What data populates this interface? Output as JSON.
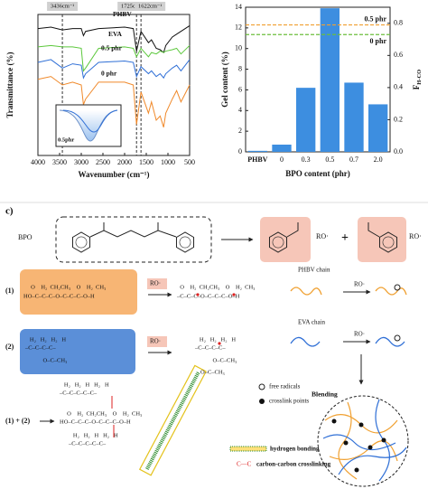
{
  "chart_data": [
    {
      "type": "line",
      "xlabel": "Wavenumber (cm⁻¹)",
      "ylabel": "Transmittance (%)",
      "x": [
        4000,
        3700,
        3436,
        3200,
        3000,
        2950,
        2900,
        2600,
        2000,
        1800,
        1725,
        1622,
        1450,
        1380,
        1270,
        1180,
        1100,
        1050,
        900,
        800,
        700,
        500
      ],
      "xlim": [
        4000,
        500
      ],
      "xticks": [
        4000,
        3500,
        3000,
        2500,
        2000,
        1500,
        1000,
        500
      ],
      "ylim": [
        0,
        100
      ],
      "series": [
        {
          "name": "PHBV",
          "color": "#111111",
          "values": [
            90,
            91,
            89,
            90,
            90,
            85,
            88,
            90,
            91,
            90,
            74,
            88,
            80,
            82,
            76,
            75,
            73,
            78,
            84,
            86,
            88,
            92
          ]
        },
        {
          "name": "EVA",
          "color": "#5cc83c",
          "values": [
            77,
            78,
            77,
            77,
            76,
            60,
            62,
            76,
            77,
            76,
            70,
            76,
            70,
            73,
            72,
            74,
            73,
            74,
            75,
            76,
            72,
            78
          ]
        },
        {
          "name": "0.5 phr",
          "color": "#2f6fd6",
          "values": [
            66,
            68,
            62,
            65,
            64,
            55,
            58,
            66,
            67,
            66,
            56,
            63,
            58,
            60,
            56,
            58,
            55,
            58,
            62,
            64,
            60,
            68
          ]
        },
        {
          "name": "0 phr",
          "color": "#f0892a",
          "values": [
            54,
            56,
            50,
            52,
            50,
            36,
            40,
            52,
            52,
            50,
            22,
            45,
            30,
            38,
            25,
            28,
            20,
            30,
            40,
            46,
            38,
            50
          ]
        }
      ],
      "markers": [
        {
          "value": 3436,
          "label": "3436cm⁻¹"
        },
        {
          "value": 1725,
          "label": "1725cm⁻¹"
        },
        {
          "value": 1622,
          "label": "1622cm⁻¹"
        }
      ],
      "inset_label": "0.5phr"
    },
    {
      "type": "bar",
      "xlabel": "BPO content (phr)",
      "ylabel": "Gel content (%)",
      "y2label": "F",
      "y2label_subscript": "H-CO",
      "categories": [
        "PHBV",
        "0",
        "0.3",
        "0.5",
        "0.7",
        "2.0"
      ],
      "values": [
        0.1,
        0.7,
        6.2,
        13.9,
        6.7,
        4.6
      ],
      "color": "#3d8ee0",
      "ylim": [
        0,
        14
      ],
      "yticks": [
        0,
        2,
        4,
        6,
        8,
        10,
        12,
        14
      ],
      "y2lim": [
        0,
        0.9
      ],
      "y2ticks": [
        {
          "value": 0,
          "label": "0.0"
        },
        0.2,
        0.4,
        0.6,
        0.8
      ],
      "reference_lines": [
        {
          "name": "0.5 phr",
          "value": 0.79,
          "color": "#f0a030",
          "axis": "y2"
        },
        {
          "name": "0 phr",
          "value": 0.73,
          "color": "#6cbf3c",
          "axis": "y2"
        }
      ]
    }
  ],
  "diagram": {
    "panel_label": "c)",
    "bpo_label": "BPO",
    "radical_1": "RO·",
    "plus": "+",
    "radical_2": "RO·",
    "reaction_1": {
      "label": "(1)",
      "reactant": [
        "     O    H₂  CH₂CH₃    O    H₂  CH₃",
        "HO–C–C–C–O–C–C–C–O–H"
      ],
      "reagent": "RO·",
      "product": [
        "  O    H₂  CH₂CH₃    O    H₂  CH₃",
        "–C–C–C–O–C–C–C–O–H"
      ],
      "chain_label": "PHBV chain",
      "chain_reagent": "RO·"
    },
    "reaction_2": {
      "label": "(2)",
      "reactant": [
        "   H₂   H₂   H₂   H",
        "–C–C–C–C–",
        "            O–C–CH₃"
      ],
      "reagent": "RO·",
      "product": [
        "   H₂   H₂   H₂   H",
        "–C–C–C–C–",
        "            O–C–CH₃"
      ],
      "chain_label": "EVA chain",
      "chain_reagent": "RO·"
    },
    "blending": "Blending",
    "combined": {
      "label": "(1) + (2)",
      "structure": [
        "   H₂   H₂   H   H₂   H",
        "–C–C–C–C–C–",
        "     O    H₂  CH₂CH₃    O    H₂  CH₃",
        "HO–C–C–C–O–C–C–C–O–H",
        "   H₂   H₂   H   H₂   H",
        "–C–C–C–C–C–"
      ],
      "side_group": "O–C–CH₃"
    },
    "legend": [
      "free radicals",
      "crosslink points",
      "hydrogen bonding",
      "carbon-carbon crosslinking"
    ],
    "legend_symbol": "C—C"
  }
}
